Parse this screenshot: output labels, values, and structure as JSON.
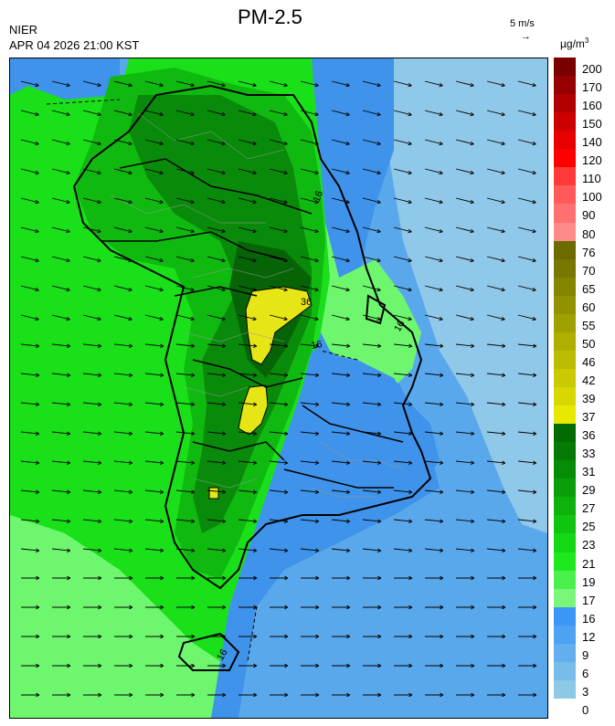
{
  "header": {
    "title": "PM-2.5",
    "agency": "NIER",
    "timestamp": "APR 04 2026 21:00 KST",
    "wind_reference": "5 m/s",
    "unit": "µg/m",
    "unit_exponent": "3"
  },
  "map": {
    "contour_labels": [
      "36",
      "16",
      "16",
      "16",
      "16"
    ],
    "colors": {
      "sea_light": "#8fc8e8",
      "sea_mid": "#5aa8ec",
      "sea_dark": "#3f93ea",
      "green_light": "#6ef76e",
      "green_mid": "#19e019",
      "green_deep": "#10b910",
      "green_dark": "#0a8a0a",
      "green_darkest": "#066406",
      "yellow": "#e6e617",
      "boundary": "#000000"
    }
  },
  "colorbar": {
    "levels": [
      {
        "label": "200",
        "color": "#7a0000"
      },
      {
        "label": "170",
        "color": "#960000"
      },
      {
        "label": "160",
        "color": "#b20000"
      },
      {
        "label": "150",
        "color": "#cc0000"
      },
      {
        "label": "140",
        "color": "#e60000"
      },
      {
        "label": "120",
        "color": "#ff0000"
      },
      {
        "label": "110",
        "color": "#ff3a3a"
      },
      {
        "label": "100",
        "color": "#ff5a5a"
      },
      {
        "label": "90",
        "color": "#ff7070"
      },
      {
        "label": "80",
        "color": "#ff8a8a"
      },
      {
        "label": "76",
        "color": "#6b6b00"
      },
      {
        "label": "70",
        "color": "#787800"
      },
      {
        "label": "65",
        "color": "#858500"
      },
      {
        "label": "60",
        "color": "#929200"
      },
      {
        "label": "55",
        "color": "#a0a000"
      },
      {
        "label": "50",
        "color": "#afaf00"
      },
      {
        "label": "46",
        "color": "#bcbc00"
      },
      {
        "label": "42",
        "color": "#caca00"
      },
      {
        "label": "39",
        "color": "#d8d800"
      },
      {
        "label": "37",
        "color": "#e8e800"
      },
      {
        "label": "36",
        "color": "#036b03"
      },
      {
        "label": "33",
        "color": "#057b05"
      },
      {
        "label": "31",
        "color": "#078c07"
      },
      {
        "label": "29",
        "color": "#0a9f0a"
      },
      {
        "label": "27",
        "color": "#0db20d"
      },
      {
        "label": "25",
        "color": "#10c510"
      },
      {
        "label": "23",
        "color": "#14d814"
      },
      {
        "label": "21",
        "color": "#1ee81e"
      },
      {
        "label": "19",
        "color": "#4cf04c"
      },
      {
        "label": "17",
        "color": "#7af77a"
      },
      {
        "label": "16",
        "color": "#3a97f5"
      },
      {
        "label": "12",
        "color": "#4da2f2"
      },
      {
        "label": "9",
        "color": "#62aeef"
      },
      {
        "label": "6",
        "color": "#78bdea"
      },
      {
        "label": "3",
        "color": "#8dc8e6"
      },
      {
        "label": "0",
        "color": null
      }
    ]
  }
}
